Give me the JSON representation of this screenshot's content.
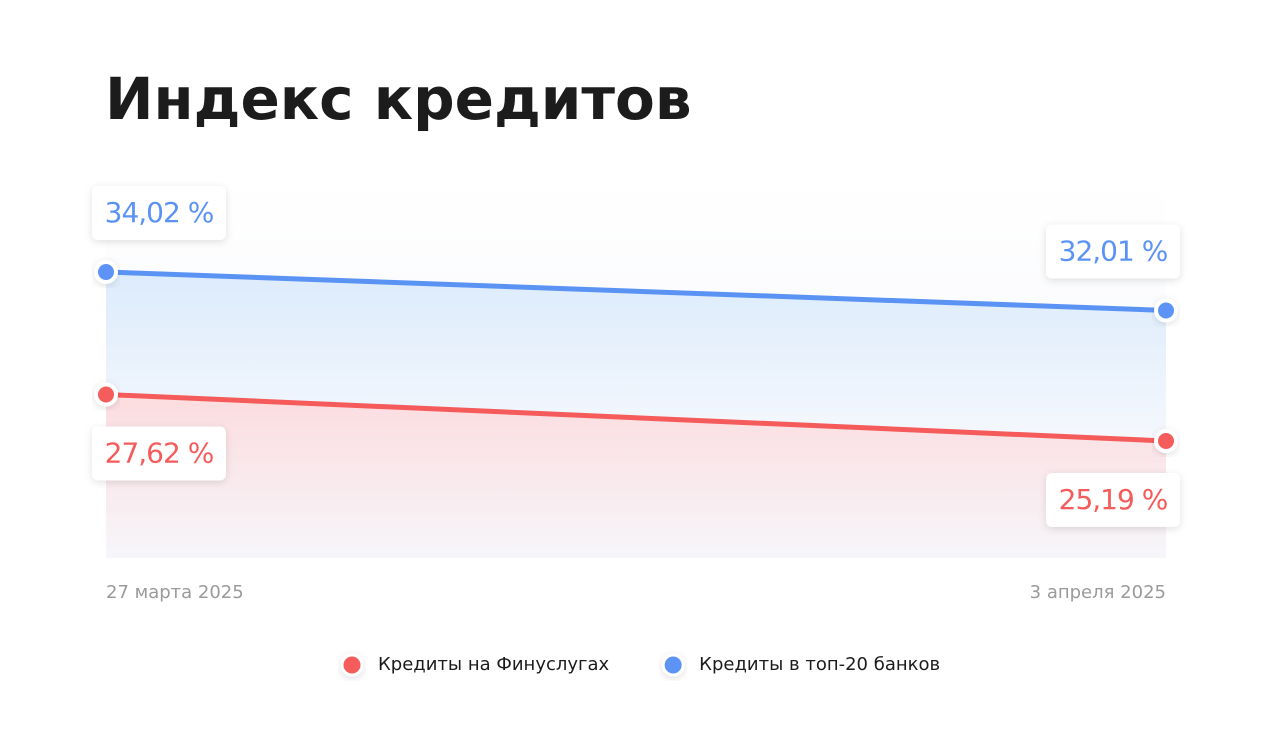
{
  "chart_data": {
    "type": "line",
    "title": "Индекс кредитов",
    "categories": [
      "27 марта 2025",
      "3 апреля 2025"
    ],
    "series": [
      {
        "name": "Кредиты на Финуслугах",
        "color": "#f55b5b",
        "values": [
          27.62,
          25.19
        ],
        "value_labels": [
          "27,62 %",
          "25,19 %"
        ],
        "label_position": "below"
      },
      {
        "name": "Кредиты в топ-20 банков",
        "color": "#5b93f5",
        "values": [
          34.02,
          32.01
        ],
        "value_labels": [
          "34,02 %",
          "32,01 %"
        ],
        "label_position": "above"
      }
    ]
  }
}
